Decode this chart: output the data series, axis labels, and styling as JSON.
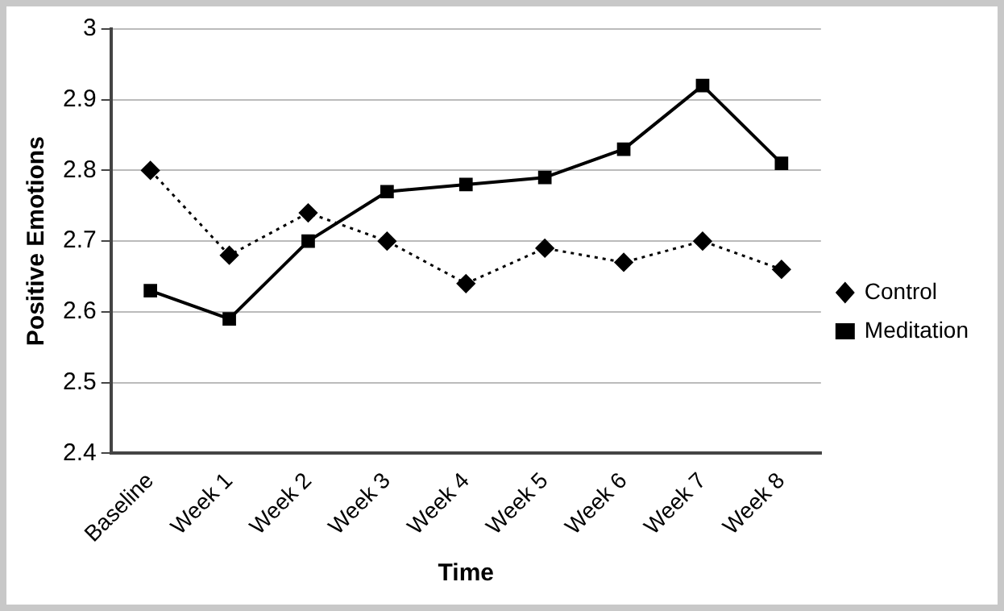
{
  "chart_data": {
    "type": "line",
    "xlabel": "Time",
    "ylabel": "Positive Emotions",
    "categories": [
      "Baseline",
      "Week 1",
      "Week 2",
      "Week 3",
      "Week 4",
      "Week 5",
      "Week 6",
      "Week 7",
      "Week 8"
    ],
    "series": [
      {
        "name": "Control",
        "color": "#000000",
        "marker": "diamond",
        "line_style": "dotted",
        "values": [
          2.8,
          2.68,
          2.74,
          2.7,
          2.64,
          2.69,
          2.67,
          2.7,
          2.66
        ]
      },
      {
        "name": "Meditation",
        "color": "#000000",
        "marker": "square",
        "line_style": "solid",
        "values": [
          2.63,
          2.59,
          2.7,
          2.77,
          2.78,
          2.79,
          2.83,
          2.92,
          2.81
        ]
      }
    ],
    "ylim": [
      2.4,
      3
    ],
    "yticks": [
      2.4,
      2.5,
      2.6,
      2.7,
      2.8,
      2.9,
      3
    ],
    "grid": "y",
    "legend": "right"
  }
}
